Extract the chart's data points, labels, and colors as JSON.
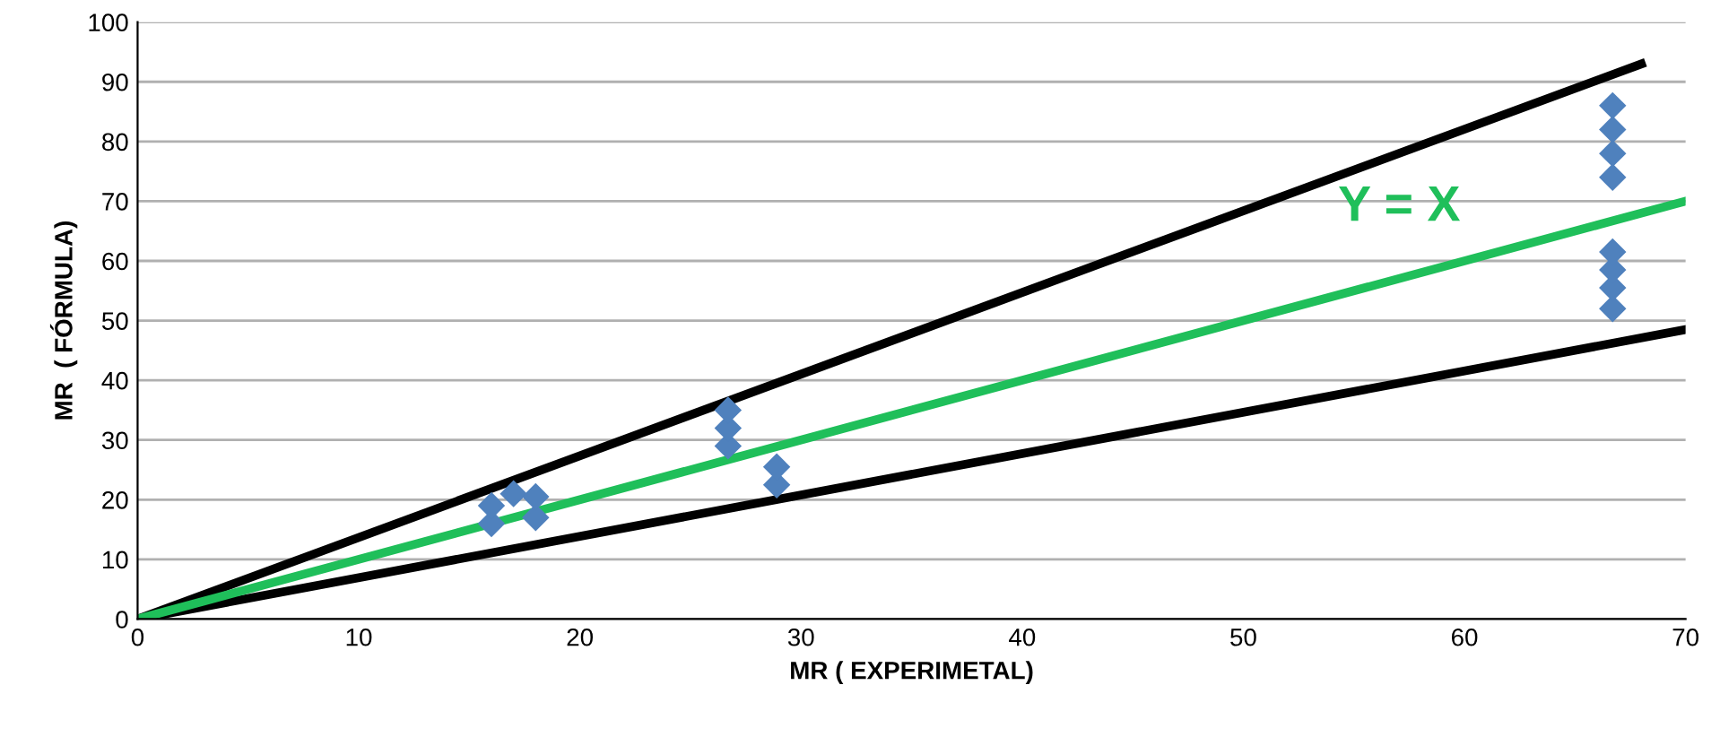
{
  "chart_data": {
    "type": "scatter",
    "xlabel": "MR ( EXPERIMETAL)",
    "ylabel": "MR  ( FÓRMULA)",
    "xlim": [
      0,
      70
    ],
    "xticks": [
      0,
      10,
      20,
      30,
      40,
      50,
      60,
      70
    ],
    "ylim": [
      0,
      100
    ],
    "yticks": [
      0,
      10,
      20,
      30,
      40,
      50,
      60,
      70,
      80,
      90,
      100
    ],
    "grid": "y",
    "annotations": [
      "Y = X"
    ],
    "series": [
      {
        "type": "line",
        "color": "#000000",
        "x": [
          0,
          68
        ],
        "values": [
          0,
          93
        ],
        "marker": "none",
        "line_style": "solid"
      },
      {
        "type": "line",
        "color": "#000000",
        "x": [
          0,
          70
        ],
        "values": [
          0,
          48.5
        ],
        "marker": "none",
        "line_style": "solid"
      },
      {
        "type": "line",
        "color": "#1fbf5a",
        "x": [
          0,
          70
        ],
        "values": [
          0,
          70
        ],
        "marker": "none",
        "line_style": "solid"
      },
      {
        "color": "#4f81bd",
        "marker": "diamond",
        "x": [
          16,
          16,
          17,
          18,
          18,
          26.7,
          26.7,
          26.7,
          28.9,
          28.9,
          66.7,
          66.7,
          66.7,
          66.7,
          66.7,
          66.7,
          66.7,
          66.7
        ],
        "values": [
          16,
          19,
          21,
          17,
          20.5,
          29,
          32,
          35,
          22.5,
          25.5,
          74,
          78,
          82,
          86,
          52,
          55.5,
          58.5,
          61.5
        ]
      }
    ]
  }
}
